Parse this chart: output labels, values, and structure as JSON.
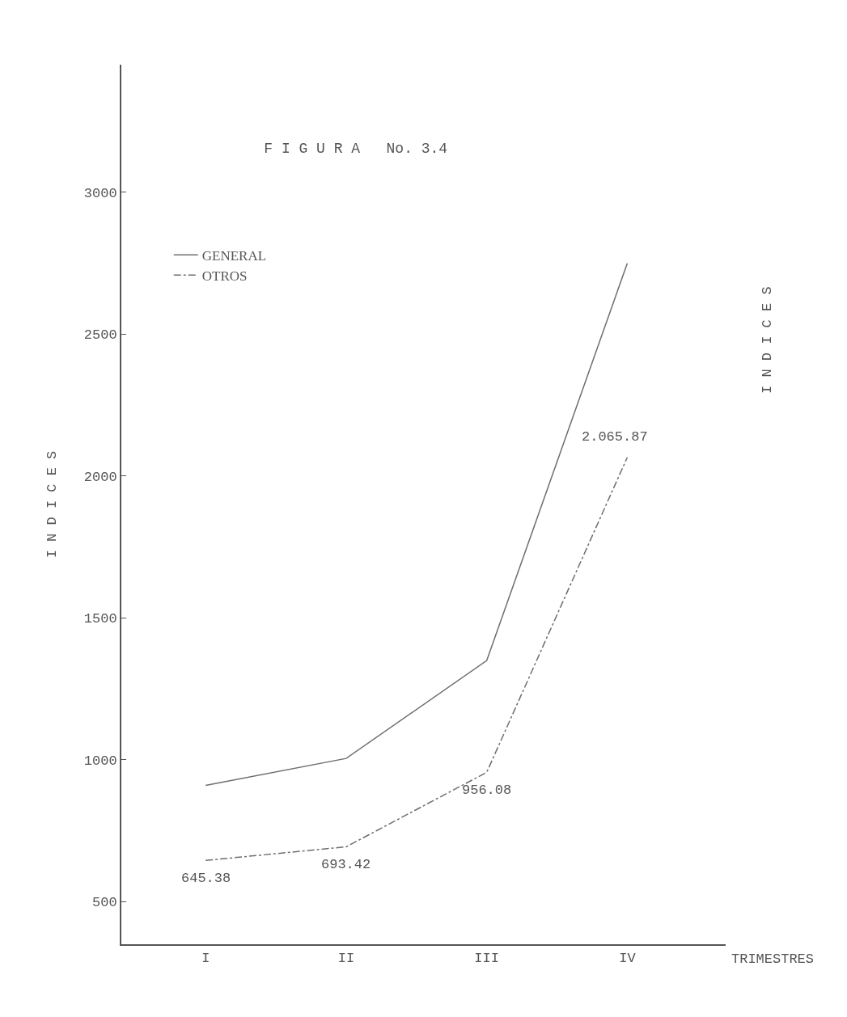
{
  "chart_data": {
    "type": "line",
    "title": "F I G U R A   No. 3.4",
    "xlabel": "TRIMESTRES",
    "ylabel": "I N D I C E S",
    "y2label": "I N D I C E S",
    "categories": [
      "I",
      "II",
      "III",
      "IV"
    ],
    "series": [
      {
        "name": "GENERAL",
        "color": "#6e6e6e",
        "line_style": "solid",
        "values": [
          910,
          1005,
          1350,
          2750
        ]
      },
      {
        "name": "OTROS",
        "color": "#6e6e6e",
        "line_style": "dashdot",
        "values": [
          645.38,
          693.42,
          956.08,
          2065.87
        ],
        "value_labels": [
          "645.38",
          "693.42",
          "956.08",
          "2.065.87"
        ]
      }
    ],
    "ylim": [
      350,
      3450
    ],
    "yticks": [
      500,
      1000,
      1500,
      2000,
      2500,
      3000
    ],
    "legend": "top left",
    "marker": "none"
  }
}
